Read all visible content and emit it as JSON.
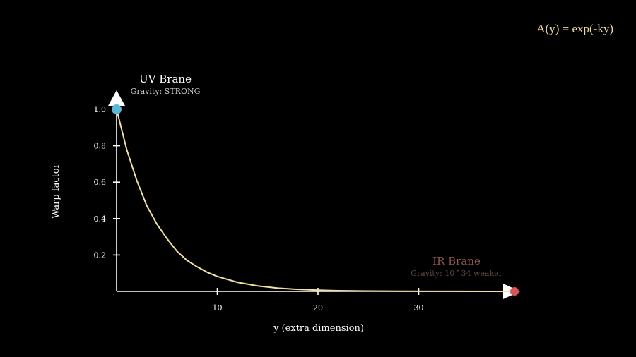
{
  "formula": "A(y) = exp(-ky)",
  "uv_brane": {
    "label": "UV Brane",
    "sublabel": "Gravity: STRONG"
  },
  "ir_brane": {
    "label": "IR Brane",
    "sublabel": "Gravity: 10^34 weaker"
  },
  "colors": {
    "background": "#000000",
    "axis": "#ffffff",
    "curve": "#f2e2a0",
    "uv_marker": "#5ab8d4",
    "ir_marker": "#d9555a",
    "formula": "#f3d9a0",
    "ir_label": "#8a5450",
    "ir_sublabel": "#5e4a44",
    "uv_sublabel": "#c8c8c8"
  },
  "chart_data": {
    "type": "line",
    "title": "",
    "xlabel": "y (extra dimension)",
    "ylabel": "Warp factor",
    "xlim": [
      0,
      40
    ],
    "ylim": [
      0,
      1.0
    ],
    "x_ticks": [
      10,
      20,
      30
    ],
    "y_ticks": [
      0.2,
      0.4,
      0.6,
      0.8,
      1.0
    ],
    "y_tick_labels": [
      "0.2",
      "0.4",
      "0.6",
      "0.8",
      "1.0"
    ],
    "grid": false,
    "series": [
      {
        "x": [
          0,
          1,
          2,
          3,
          4,
          5,
          6,
          7,
          8,
          9,
          10,
          12,
          14,
          16,
          18,
          20,
          22,
          25,
          28,
          31,
          34,
          37,
          40
        ],
        "values": [
          1.0,
          0.78,
          0.61,
          0.47,
          0.37,
          0.29,
          0.22,
          0.17,
          0.135,
          0.105,
          0.082,
          0.05,
          0.03,
          0.018,
          0.011,
          0.007,
          0.004,
          0.002,
          0.001,
          0.0005,
          0.0003,
          0.0001,
          0.0
        ]
      }
    ],
    "markers": [
      {
        "x": 0,
        "y": 1.0,
        "brane": "uv"
      },
      {
        "x": 40,
        "y": 0.0,
        "brane": "ir"
      }
    ]
  }
}
